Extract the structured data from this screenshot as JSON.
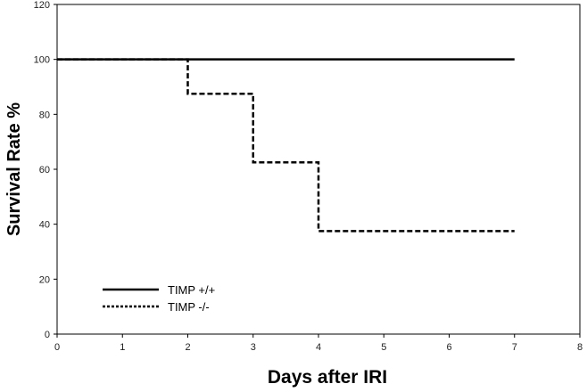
{
  "chart_data": {
    "type": "line",
    "xlabel": "Days after IRI",
    "ylabel": "Survival Rate %",
    "xlim": [
      0,
      8
    ],
    "ylim": [
      0,
      120
    ],
    "xticks": [
      "0",
      "1",
      "2",
      "3",
      "4",
      "5",
      "6",
      "7",
      "8"
    ],
    "yticks": [
      "0",
      "20",
      "40",
      "60",
      "80",
      "100",
      "120"
    ],
    "grid": false,
    "legend_position": "bottom-left",
    "series": [
      {
        "name": "TIMP +/+",
        "style": "solid",
        "color": "#000000",
        "step": true,
        "x": [
          0,
          7
        ],
        "y": [
          100,
          100
        ]
      },
      {
        "name": "TIMP -/-",
        "style": "dashed",
        "color": "#000000",
        "step": true,
        "x": [
          0,
          2,
          3,
          4,
          7
        ],
        "y": [
          100,
          87.5,
          62.5,
          37.5,
          37.5
        ]
      }
    ]
  }
}
